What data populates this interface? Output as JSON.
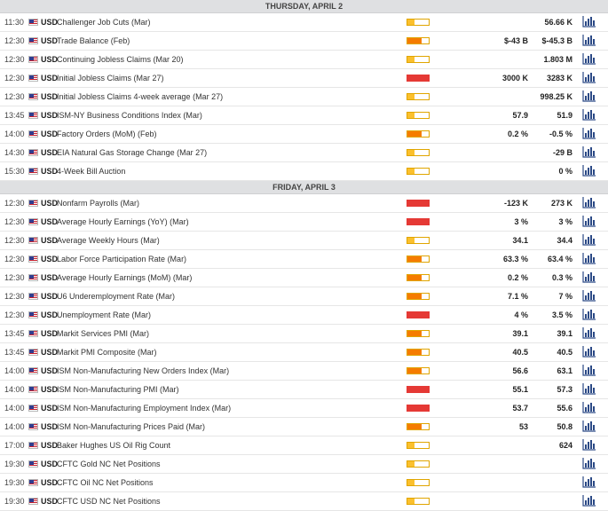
{
  "days": [
    {
      "title": "THURSDAY, APRIL 2",
      "events": [
        {
          "time": "11:30",
          "currency": "USD",
          "event": "Challenger Job Cuts (Mar)",
          "volatility": "low",
          "actual": "",
          "consensus": "56.66 K"
        },
        {
          "time": "12:30",
          "currency": "USD",
          "event": "Trade Balance (Feb)",
          "volatility": "med",
          "actual": "$-43 B",
          "consensus": "$-45.3 B"
        },
        {
          "time": "12:30",
          "currency": "USD",
          "event": "Continuing Jobless Claims (Mar 20)",
          "volatility": "low",
          "actual": "",
          "consensus": "1.803 M"
        },
        {
          "time": "12:30",
          "currency": "USD",
          "event": "Initial Jobless Claims (Mar 27)",
          "volatility": "high",
          "actual": "3000 K",
          "consensus": "3283 K"
        },
        {
          "time": "12:30",
          "currency": "USD",
          "event": "Initial Jobless Claims 4-week average (Mar 27)",
          "volatility": "low",
          "actual": "",
          "consensus": "998.25 K"
        },
        {
          "time": "13:45",
          "currency": "USD",
          "event": "ISM-NY Business Conditions Index (Mar)",
          "volatility": "low",
          "actual": "57.9",
          "consensus": "51.9"
        },
        {
          "time": "14:00",
          "currency": "USD",
          "event": "Factory Orders (MoM) (Feb)",
          "volatility": "med",
          "actual": "0.2 %",
          "consensus": "-0.5 %"
        },
        {
          "time": "14:30",
          "currency": "USD",
          "event": "EIA Natural Gas Storage Change (Mar 27)",
          "volatility": "low",
          "actual": "",
          "consensus": "-29 B"
        },
        {
          "time": "15:30",
          "currency": "USD",
          "event": "4-Week Bill Auction",
          "volatility": "low",
          "actual": "",
          "consensus": "0 %"
        }
      ]
    },
    {
      "title": "FRIDAY, APRIL 3",
      "events": [
        {
          "time": "12:30",
          "currency": "USD",
          "event": "Nonfarm Payrolls (Mar)",
          "volatility": "high",
          "actual": "-123 K",
          "consensus": "273 K"
        },
        {
          "time": "12:30",
          "currency": "USD",
          "event": "Average Hourly Earnings (YoY) (Mar)",
          "volatility": "high",
          "actual": "3 %",
          "consensus": "3 %"
        },
        {
          "time": "12:30",
          "currency": "USD",
          "event": "Average Weekly Hours (Mar)",
          "volatility": "low",
          "actual": "34.1",
          "consensus": "34.4"
        },
        {
          "time": "12:30",
          "currency": "USD",
          "event": "Labor Force Participation Rate (Mar)",
          "volatility": "med",
          "actual": "63.3 %",
          "consensus": "63.4 %"
        },
        {
          "time": "12:30",
          "currency": "USD",
          "event": "Average Hourly Earnings (MoM) (Mar)",
          "volatility": "med",
          "actual": "0.2 %",
          "consensus": "0.3 %"
        },
        {
          "time": "12:30",
          "currency": "USD",
          "event": "U6 Underemployment Rate (Mar)",
          "volatility": "med",
          "actual": "7.1 %",
          "consensus": "7 %"
        },
        {
          "time": "12:30",
          "currency": "USD",
          "event": "Unemployment Rate (Mar)",
          "volatility": "high",
          "actual": "4 %",
          "consensus": "3.5 %"
        },
        {
          "time": "13:45",
          "currency": "USD",
          "event": "Markit Services PMI (Mar)",
          "volatility": "med",
          "actual": "39.1",
          "consensus": "39.1"
        },
        {
          "time": "13:45",
          "currency": "USD",
          "event": "Markit PMI Composite (Mar)",
          "volatility": "med",
          "actual": "40.5",
          "consensus": "40.5"
        },
        {
          "time": "14:00",
          "currency": "USD",
          "event": "ISM Non-Manufacturing New Orders Index (Mar)",
          "volatility": "med",
          "actual": "56.6",
          "consensus": "63.1"
        },
        {
          "time": "14:00",
          "currency": "USD",
          "event": "ISM Non-Manufacturing PMI (Mar)",
          "volatility": "high",
          "actual": "55.1",
          "consensus": "57.3"
        },
        {
          "time": "14:00",
          "currency": "USD",
          "event": "ISM Non-Manufacturing Employment Index (Mar)",
          "volatility": "high",
          "actual": "53.7",
          "consensus": "55.6"
        },
        {
          "time": "14:00",
          "currency": "USD",
          "event": "ISM Non-Manufacturing Prices Paid (Mar)",
          "volatility": "med",
          "actual": "53",
          "consensus": "50.8"
        },
        {
          "time": "17:00",
          "currency": "USD",
          "event": "Baker Hughes US Oil Rig Count",
          "volatility": "low",
          "actual": "",
          "consensus": "624"
        },
        {
          "time": "19:30",
          "currency": "USD",
          "event": "CFTC Gold NC Net Positions",
          "volatility": "low",
          "actual": "",
          "consensus": ""
        },
        {
          "time": "19:30",
          "currency": "USD",
          "event": "CFTC Oil NC Net Positions",
          "volatility": "low",
          "actual": "",
          "consensus": ""
        },
        {
          "time": "19:30",
          "currency": "USD",
          "event": "CFTC USD NC Net Positions",
          "volatility": "low",
          "actual": "",
          "consensus": ""
        }
      ]
    }
  ],
  "icons": {
    "flag": "us-flag-icon",
    "chart": "bar-chart-icon"
  },
  "colors": {
    "high": "#e53935",
    "med": "#f57c00",
    "low": "#fbc02d",
    "chart_icon": "#2c4a86"
  }
}
